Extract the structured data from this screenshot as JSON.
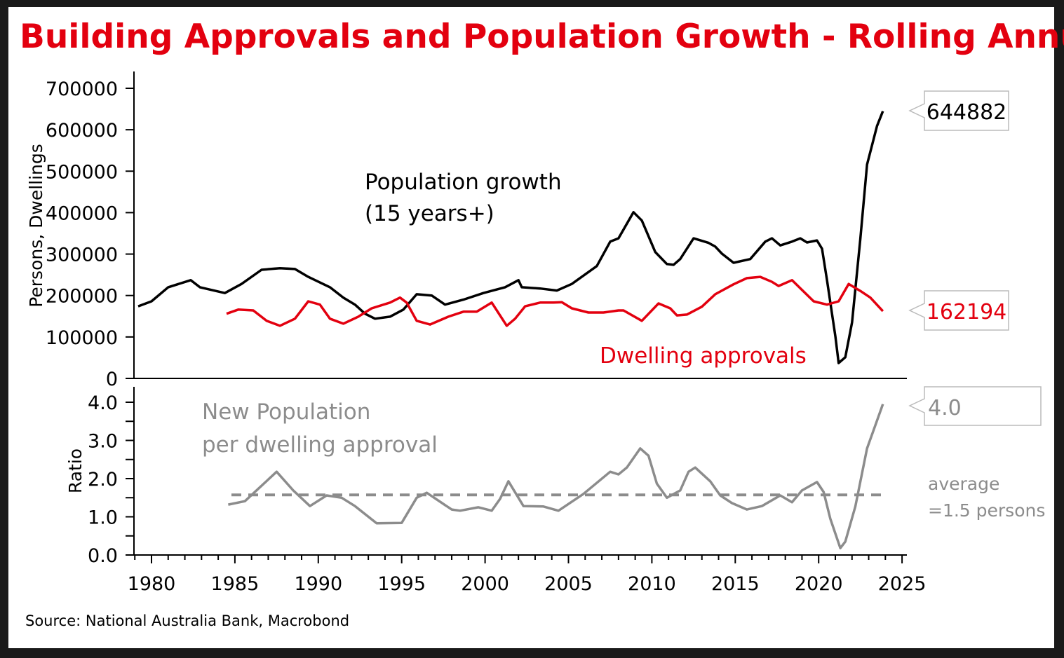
{
  "chart_data": [
    {
      "type": "line",
      "title": "Building Approvals and Population Growth - Rolling Annual*",
      "ylabel": "Persons, Dwellings",
      "ylim": [
        0,
        700000
      ],
      "yticks": [
        "0",
        "100000",
        "200000",
        "300000",
        "400000",
        "500000",
        "600000",
        "700000"
      ],
      "xlim": [
        1979,
        2025
      ],
      "xticks": [
        "1980",
        "1985",
        "1990",
        "1995",
        "2000",
        "2005",
        "2010",
        "2015",
        "2020",
        "2025"
      ],
      "grid": false,
      "series": [
        {
          "name": "Population growth (15 years+)",
          "label_lines": [
            "Population growth",
            "(15 years+)"
          ],
          "color": "#000000",
          "last_value_label": "644882",
          "x": [
            1979.2,
            1980,
            1981,
            1982.35,
            1982.9,
            1984.4,
            1985.4,
            1986.6,
            1987.7,
            1988.6,
            1989.4,
            1990.7,
            1991.5,
            1992.2,
            1992.8,
            1993.4,
            1994.3,
            1995.1,
            1995.9,
            1996.8,
            1997.6,
            1998.7,
            1999.9,
            2001.2,
            2002,
            2002.2,
            2003.3,
            2004.3,
            2005.2,
            2006.7,
            2007.5,
            2008,
            2008.9,
            2009.4,
            2010.2,
            2010.9,
            2011.3,
            2011.7,
            2012.5,
            2013.4,
            2013.8,
            2014.2,
            2014.9,
            2015.9,
            2016.8,
            2017.2,
            2017.7,
            2018.4,
            2018.9,
            2019.3,
            2019.9,
            2020.2,
            2020.5,
            2021,
            2021.2,
            2021.6,
            2022,
            2022.5,
            2022.9,
            2023.5,
            2023.85
          ],
          "y": [
            174000,
            186000,
            220000,
            237000,
            220000,
            206000,
            228000,
            262000,
            266000,
            264000,
            245000,
            220000,
            195000,
            178000,
            156000,
            144000,
            149000,
            166000,
            203000,
            200000,
            178000,
            190000,
            206000,
            220000,
            237000,
            220000,
            217000,
            212000,
            228000,
            271000,
            330000,
            338000,
            401000,
            381000,
            305000,
            276000,
            274000,
            288000,
            338000,
            327000,
            318000,
            301000,
            279000,
            288000,
            330000,
            338000,
            321000,
            330000,
            338000,
            328000,
            333000,
            313000,
            237000,
            102000,
            37000,
            51000,
            135000,
            338000,
            516000,
            609000,
            644882
          ]
        },
        {
          "name": "Dwelling approvals",
          "color": "#e3000f",
          "last_value_label": "162194",
          "x": [
            1984.5,
            1985.2,
            1986.1,
            1986.9,
            1987.7,
            1988.6,
            1989.4,
            1990.1,
            1990.7,
            1991.5,
            1992.4,
            1993.2,
            1994.3,
            1994.9,
            1995.3,
            1995.9,
            1996.7,
            1997.8,
            1998.7,
            1999.5,
            2000.4,
            2001.3,
            2001.8,
            2002.4,
            2003.3,
            2004.1,
            2004.6,
            2005.2,
            2006.2,
            2007.1,
            2008,
            2008.3,
            2009.4,
            2010.4,
            2011.1,
            2011.5,
            2012.1,
            2013,
            2013.8,
            2014.9,
            2015.7,
            2016.5,
            2017.2,
            2017.6,
            2018.4,
            2019.7,
            2020.5,
            2021.2,
            2021.8,
            2022.5,
            2023.1,
            2023.85
          ],
          "y": [
            156000,
            166000,
            164000,
            139000,
            127000,
            144000,
            186000,
            178000,
            144000,
            132000,
            149000,
            169000,
            183000,
            195000,
            183000,
            139000,
            130000,
            149000,
            161000,
            161000,
            183000,
            127000,
            144000,
            174000,
            183000,
            183000,
            184000,
            169000,
            159000,
            159000,
            164000,
            164000,
            139000,
            181000,
            169000,
            152000,
            154000,
            173000,
            203000,
            227000,
            242000,
            245000,
            233000,
            223000,
            237000,
            186000,
            178000,
            186000,
            228000,
            211000,
            195000,
            162194
          ]
        }
      ]
    },
    {
      "type": "line",
      "ylabel": "Ratio",
      "ylim": [
        0,
        4
      ],
      "yticks": [
        "0.0",
        "1.0",
        "2.0",
        "3.0",
        "4.0"
      ],
      "xlim": [
        1979,
        2025
      ],
      "grid": false,
      "series": [
        {
          "name": "New Population per dwelling approval",
          "label_lines": [
            "New Population",
            "per dwelling approval"
          ],
          "color": "#8c8c8c",
          "last_value_label": "4.0",
          "x": [
            1984.6,
            1985.6,
            1987.5,
            1988.5,
            1989.5,
            1990.5,
            1991.4,
            1992.2,
            1993.5,
            1995,
            1995.9,
            1996.5,
            1998,
            1998.5,
            1999.6,
            2000.4,
            2000.9,
            2001.4,
            2002.3,
            2003.5,
            2004.4,
            2005.9,
            2007.5,
            2008,
            2008.5,
            2009.3,
            2009.8,
            2010.3,
            2010.9,
            2011.7,
            2012.2,
            2012.6,
            2013.5,
            2014.1,
            2014.8,
            2015.7,
            2016.6,
            2017.7,
            2018.4,
            2019,
            2019.9,
            2020.3,
            2020.7,
            2021.3,
            2021.6,
            2022.2,
            2022.9,
            2023.4,
            2023.85
          ],
          "y": [
            1.32,
            1.41,
            2.18,
            1.69,
            1.28,
            1.56,
            1.5,
            1.28,
            0.83,
            0.84,
            1.5,
            1.63,
            1.19,
            1.16,
            1.25,
            1.16,
            1.47,
            1.93,
            1.28,
            1.27,
            1.16,
            1.6,
            2.18,
            2.11,
            2.29,
            2.79,
            2.6,
            1.87,
            1.5,
            1.69,
            2.18,
            2.29,
            1.93,
            1.56,
            1.36,
            1.19,
            1.28,
            1.56,
            1.38,
            1.69,
            1.91,
            1.65,
            0.95,
            0.18,
            0.35,
            1.27,
            2.79,
            3.4,
            3.95
          ]
        },
        {
          "name": "average",
          "type": "hline",
          "color": "#8c8c8c",
          "value": 1.5,
          "label_lines": [
            "average",
            "=1.5 persons"
          ]
        }
      ]
    }
  ],
  "source": "Source: National Australia Bank, Macrobond"
}
